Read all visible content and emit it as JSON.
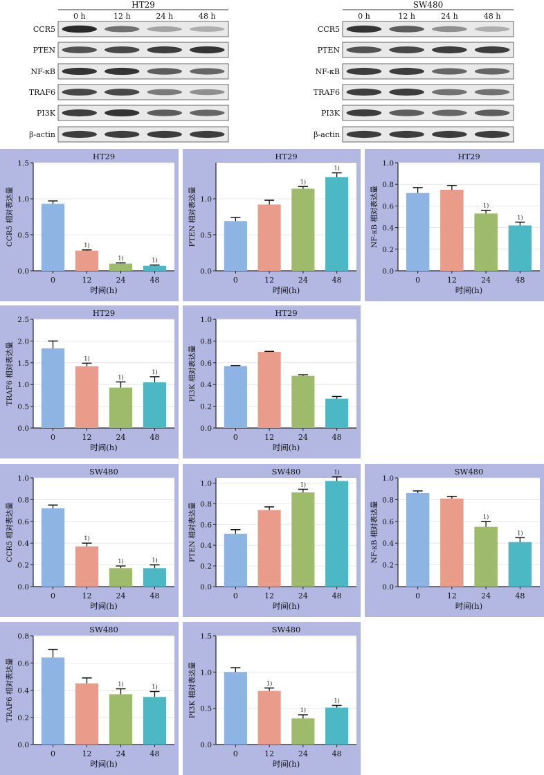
{
  "blots": [
    {
      "title": "HT29",
      "times": [
        "0 h",
        "12 h",
        "24 h",
        "48 h"
      ],
      "rows": [
        {
          "label": "CCR5",
          "intensity": [
            0.95,
            0.6,
            0.35,
            0.3
          ]
        },
        {
          "label": "PTEN",
          "intensity": [
            0.75,
            0.8,
            0.85,
            0.9
          ]
        },
        {
          "label": "NF-κB",
          "intensity": [
            0.9,
            0.9,
            0.7,
            0.65
          ]
        },
        {
          "label": "TRAF6",
          "intensity": [
            0.8,
            0.8,
            0.55,
            0.45
          ]
        },
        {
          "label": "PI3K",
          "intensity": [
            0.85,
            0.9,
            0.7,
            0.65
          ]
        },
        {
          "label": "β-actin",
          "intensity": [
            0.85,
            0.85,
            0.85,
            0.85
          ]
        }
      ]
    },
    {
      "title": "SW480",
      "times": [
        "0 h",
        "12 h",
        "24 h",
        "48 h"
      ],
      "rows": [
        {
          "label": "CCR5",
          "intensity": [
            0.9,
            0.7,
            0.45,
            0.3
          ]
        },
        {
          "label": "PTEN",
          "intensity": [
            0.75,
            0.8,
            0.85,
            0.85
          ]
        },
        {
          "label": "NF-κB",
          "intensity": [
            0.85,
            0.85,
            0.65,
            0.65
          ]
        },
        {
          "label": "TRAF6",
          "intensity": [
            0.85,
            0.85,
            0.6,
            0.6
          ]
        },
        {
          "label": "PI3K",
          "intensity": [
            0.85,
            0.7,
            0.65,
            0.7
          ]
        },
        {
          "label": "β-actin",
          "intensity": [
            0.85,
            0.85,
            0.85,
            0.85
          ]
        }
      ]
    }
  ],
  "chart_data": [
    {
      "type": "bar",
      "title": "HT29",
      "ylabel": "CCR5 相对表达量",
      "xlabel": "时间(h)",
      "categories": [
        "0",
        "12",
        "24",
        "48"
      ],
      "values": [
        0.93,
        0.28,
        0.1,
        0.07
      ],
      "errors": [
        0.04,
        0.01,
        0.01,
        0.01
      ],
      "sig": [
        "",
        "1)",
        "1)",
        "1)"
      ],
      "ylim": [
        0,
        1.5
      ],
      "yticks": [
        "0.0",
        "0.5",
        "1.0",
        "1.5"
      ]
    },
    {
      "type": "bar",
      "title": "HT29",
      "ylabel": "PTEN 相对表达量",
      "xlabel": "时间(h)",
      "categories": [
        "0",
        "12",
        "24",
        "48"
      ],
      "values": [
        0.69,
        0.92,
        1.14,
        1.3
      ],
      "errors": [
        0.05,
        0.06,
        0.03,
        0.06
      ],
      "sig": [
        "",
        "",
        "1)",
        "1)"
      ],
      "ylim": [
        0,
        1.5
      ],
      "yticks": [
        "0.0",
        "0.5",
        "1.0"
      ]
    },
    {
      "type": "bar",
      "title": "HT29",
      "ylabel": "NF-κB 相对表达量",
      "xlabel": "时间(h)",
      "categories": [
        "0",
        "12",
        "24",
        "48"
      ],
      "values": [
        0.72,
        0.75,
        0.53,
        0.42
      ],
      "errors": [
        0.05,
        0.04,
        0.03,
        0.03
      ],
      "sig": [
        "",
        "",
        "1)",
        "1)"
      ],
      "ylim": [
        0,
        1.0
      ],
      "yticks": [
        "0.0",
        "0.2",
        "0.4",
        "0.6",
        "0.8",
        "1.0"
      ]
    },
    {
      "type": "bar",
      "title": "HT29",
      "ylabel": "TRAF6 相对表达量",
      "xlabel": "时间(h)",
      "categories": [
        "0",
        "12",
        "24",
        "48"
      ],
      "values": [
        1.83,
        1.42,
        0.93,
        1.05
      ],
      "errors": [
        0.17,
        0.07,
        0.13,
        0.13
      ],
      "sig": [
        "",
        "1)",
        "1)",
        "1)"
      ],
      "ylim": [
        0,
        2.5
      ],
      "yticks": [
        "0.0",
        "0.5",
        "1.0",
        "1.5",
        "2.0",
        "2.5"
      ]
    },
    {
      "type": "bar",
      "title": "HT29",
      "ylabel": "PI3K 相对表达量",
      "xlabel": "时间(h)",
      "categories": [
        "0",
        "12",
        "24",
        "48"
      ],
      "values": [
        0.57,
        0.7,
        0.48,
        0.27
      ],
      "errors": [
        0.005,
        0.005,
        0.01,
        0.02
      ],
      "sig": [
        "",
        "",
        "",
        ""
      ],
      "ylim": [
        0,
        1.0
      ],
      "yticks": [
        "0.0",
        "0.2",
        "0.4",
        "0.6",
        "0.8",
        "1.0"
      ]
    },
    {
      "type": "bar",
      "title": "SW480",
      "ylabel": "CCR5 相对表达量",
      "xlabel": "时间(h)",
      "categories": [
        "0",
        "12",
        "24",
        "48"
      ],
      "values": [
        0.72,
        0.37,
        0.17,
        0.17
      ],
      "errors": [
        0.03,
        0.03,
        0.02,
        0.03
      ],
      "sig": [
        "",
        "1)",
        "1)",
        "1)"
      ],
      "ylim": [
        0,
        1.0
      ],
      "yticks": [
        "0.0",
        "0.2",
        "0.4",
        "0.6",
        "0.8",
        "1.0"
      ]
    },
    {
      "type": "bar",
      "title": "SW480",
      "ylabel": "PTEN 相对表达量",
      "xlabel": "时间(h)",
      "categories": [
        "0",
        "12",
        "24",
        "48"
      ],
      "values": [
        0.51,
        0.74,
        0.91,
        1.02
      ],
      "errors": [
        0.04,
        0.03,
        0.03,
        0.04
      ],
      "sig": [
        "",
        "",
        "1)",
        "1)"
      ],
      "ylim": [
        0,
        1.05
      ],
      "yticks": [
        "0.0",
        "0.2",
        "0.4",
        "0.6",
        "0.8",
        "1.0"
      ]
    },
    {
      "type": "bar",
      "title": "SW480",
      "ylabel": "NF-κB 相对表达量",
      "xlabel": "时间(h)",
      "categories": [
        "0",
        "12",
        "24",
        "48"
      ],
      "values": [
        0.86,
        0.81,
        0.55,
        0.41
      ],
      "errors": [
        0.02,
        0.02,
        0.05,
        0.04
      ],
      "sig": [
        "",
        "",
        "1)",
        "1)"
      ],
      "ylim": [
        0,
        1.0
      ],
      "yticks": [
        "0.0",
        "0.2",
        "0.4",
        "0.6",
        "0.8",
        "1.0"
      ]
    },
    {
      "type": "bar",
      "title": "SW480",
      "ylabel": "TRAF6 相对表达量",
      "xlabel": "时间(h)",
      "categories": [
        "0",
        "12",
        "24",
        "48"
      ],
      "values": [
        0.64,
        0.45,
        0.37,
        0.35
      ],
      "errors": [
        0.06,
        0.04,
        0.04,
        0.04
      ],
      "sig": [
        "",
        "",
        "1)",
        "1)"
      ],
      "ylim": [
        0,
        0.8
      ],
      "yticks": [
        "0.0",
        "0.2",
        "0.4",
        "0.6",
        "0.8"
      ]
    },
    {
      "type": "bar",
      "title": "SW480",
      "ylabel": "PI3K 相对表达量",
      "xlabel": "时间(h)",
      "categories": [
        "0",
        "12",
        "24",
        "48"
      ],
      "values": [
        1.0,
        0.74,
        0.36,
        0.51
      ],
      "errors": [
        0.06,
        0.04,
        0.05,
        0.03
      ],
      "sig": [
        "",
        "1)",
        "1)",
        "1)"
      ],
      "ylim": [
        0,
        1.5
      ],
      "yticks": [
        "0.0",
        "0.5",
        "1.0",
        "1.5"
      ]
    }
  ],
  "colors": {
    "panel_bg": "#b2b8e2",
    "bars": [
      "#8db4e2",
      "#e99c8a",
      "#9dbb6a",
      "#4bb8c4"
    ]
  }
}
